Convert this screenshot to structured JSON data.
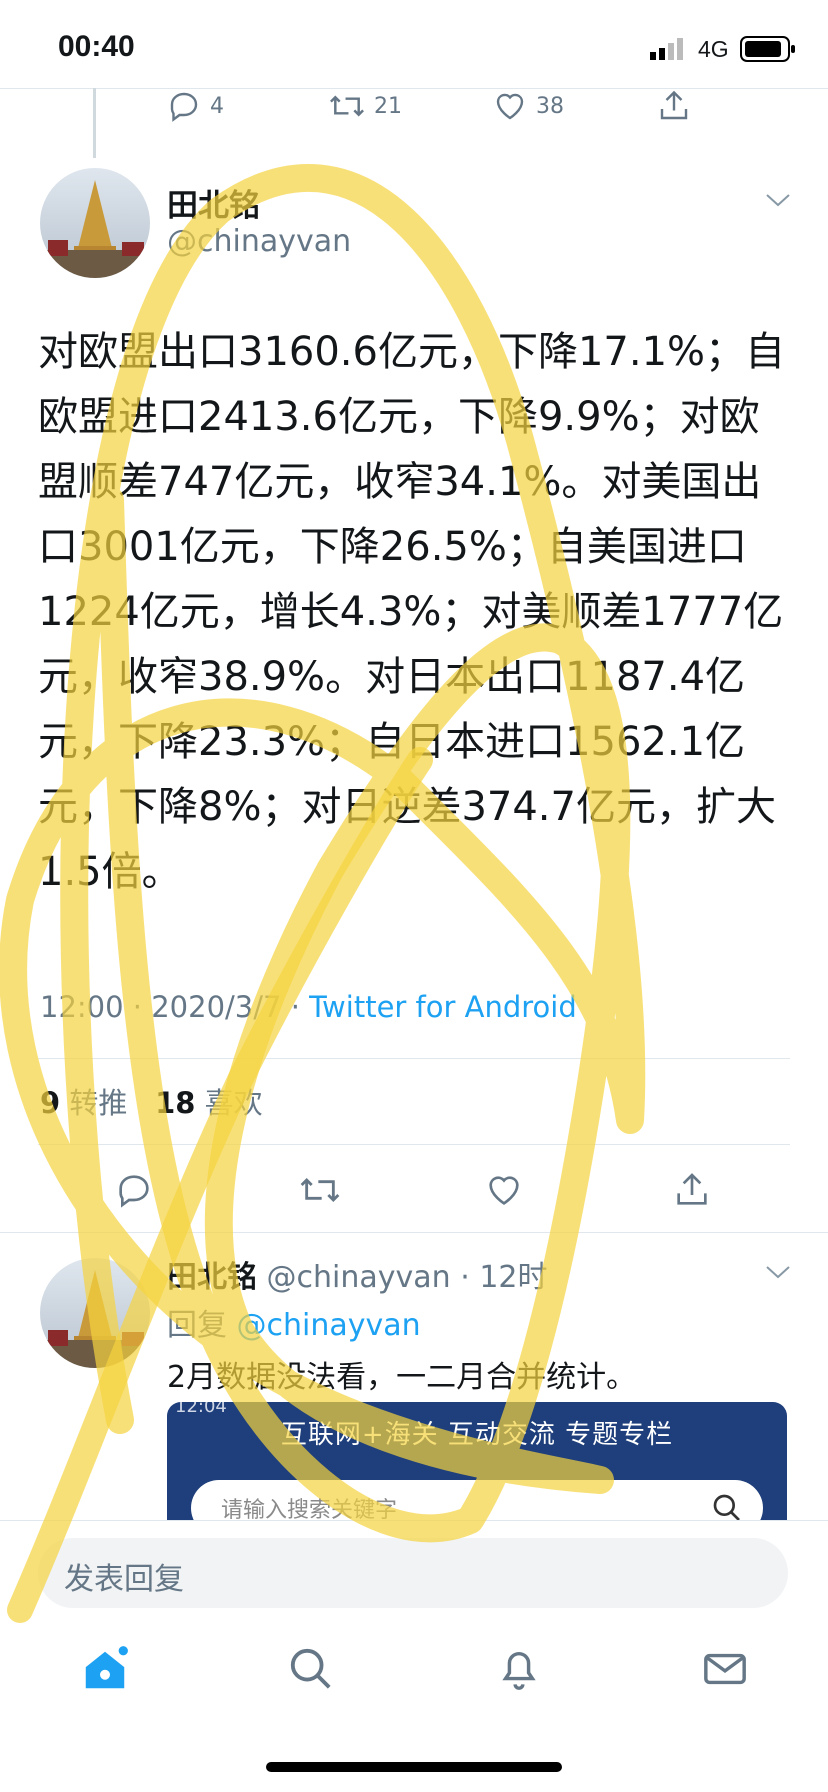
{
  "status_bar": {
    "time": "00:40",
    "network": "4G"
  },
  "prev_tweet_actions": {
    "replies": "4",
    "retweets": "21",
    "likes": "38"
  },
  "tweet": {
    "author_name": "田北铭",
    "author_handle": "@chinayvan",
    "text": "对欧盟出口3160.6亿元，下降17.1%；自欧盟进口2413.6亿元，下降9.9%；对欧盟顺差747亿元，收窄34.1%。对美国出口3001亿元，下降26.5%；自美国进口1224亿元，增长4.3%；对美顺差1777亿元，收窄38.9%。对日本出口1187.4亿元，下降23.3%；自日本进口1562.1亿元，下降8%；对日逆差374.7亿元，扩大1.5倍。",
    "time": "12:00",
    "date": "2020/3/7",
    "source": "Twitter for Android",
    "retweet_count": "9",
    "retweet_label": "转推",
    "like_count": "18",
    "like_label": "喜欢"
  },
  "reply": {
    "author_name": "田北铭",
    "author_handle": "@chinayvan",
    "age": "12时",
    "replying_label": "回复",
    "replying_handle": "@chinayvan",
    "text": "2月数据没法看，一二月合并统计。",
    "embed": {
      "timestamp": "12:04",
      "nav_text": "互联网+海关  互动交流  专题专栏",
      "search_placeholder": "请输入搜索关键字"
    }
  },
  "composer": {
    "placeholder": "发表回复"
  },
  "tab_bar": {
    "icons": [
      "home-icon",
      "search-icon",
      "notifications-icon",
      "messages-icon"
    ]
  },
  "colors": {
    "twitter_blue": "#1da1f2",
    "gray_text": "#657786",
    "highlighter": "#f5d33e",
    "embed_header": "#1e3f7b"
  }
}
